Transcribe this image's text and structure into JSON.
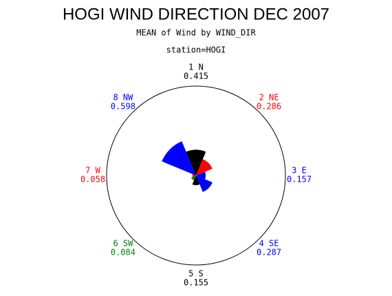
{
  "chart_data": {
    "type": "rose",
    "title": "HOGI WIND DIRECTION DEC 2007",
    "subtitle": "MEAN of Wind by WIND_DIR",
    "station_label": "station=HOGI",
    "categories": [
      "1 N",
      "2 NE",
      "3 E",
      "4 SE",
      "5 S",
      "6 SW",
      "7 W",
      "8 NW"
    ],
    "values": [
      0.415,
      0.286,
      0.157,
      0.287,
      0.155,
      0.084,
      0.058,
      0.598
    ],
    "colors": [
      "#000000",
      "#ff0000",
      "#0000ff",
      "#0000ff",
      "#000000",
      "#008000",
      "#ff0000",
      "#0000ff"
    ]
  }
}
